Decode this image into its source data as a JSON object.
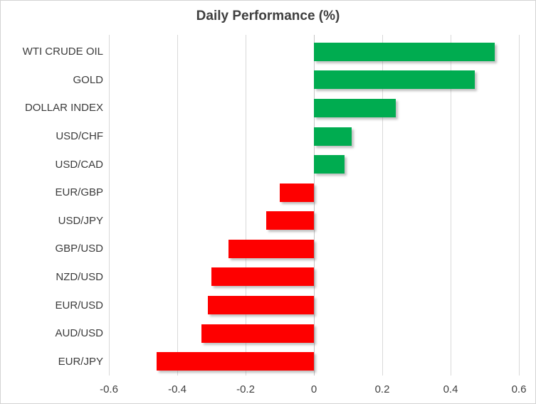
{
  "chart_data": {
    "type": "bar",
    "orientation": "horizontal",
    "title": "Daily Performance (%)",
    "categories": [
      "WTI CRUDE OIL",
      "GOLD",
      "DOLLAR INDEX",
      "USD/CHF",
      "USD/CAD",
      "EUR/GBP",
      "USD/JPY",
      "GBP/USD",
      "NZD/USD",
      "EUR/USD",
      "AUD/USD",
      "EUR/JPY"
    ],
    "values": [
      0.53,
      0.47,
      0.24,
      0.11,
      0.09,
      -0.1,
      -0.14,
      -0.25,
      -0.3,
      -0.31,
      -0.33,
      -0.46
    ],
    "xlim": [
      -0.6,
      0.6
    ],
    "x_ticks": [
      -0.6,
      -0.4,
      -0.2,
      0,
      0.2,
      0.4,
      0.6
    ],
    "x_tick_labels": [
      "-0.6",
      "-0.4",
      "-0.2",
      "0",
      "0.2",
      "0.4",
      "0.6"
    ],
    "grid": true,
    "legend": "none",
    "colors": {
      "positive": "#00ac50",
      "negative": "#fe0000",
      "gridline": "#d9d9d9",
      "zero_axis": "#c6c6c6",
      "title_text": "#3f3f3f",
      "label_text": "#3b3b3b",
      "tick_text": "#404040"
    }
  }
}
